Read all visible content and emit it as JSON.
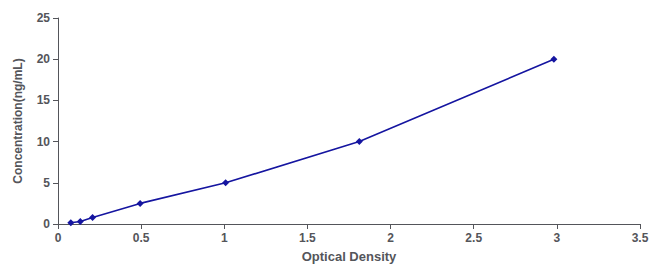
{
  "chart_data": {
    "type": "line",
    "x": [
      0.077,
      0.134,
      0.208,
      0.494,
      1.008,
      1.812,
      2.982
    ],
    "values": [
      0.156,
      0.312,
      0.781,
      2.5,
      5.0,
      10.0,
      20.0
    ],
    "xlabel": "Optical Density",
    "ylabel": "Concentration(ng/mL)",
    "xlim": [
      0,
      3.5
    ],
    "ylim": [
      0,
      25
    ],
    "xticks": [
      0,
      0.5,
      1,
      1.5,
      2,
      2.5,
      3,
      3.5
    ],
    "yticks": [
      0,
      5,
      10,
      15,
      20,
      25
    ],
    "grid": false,
    "color": "#1515a0",
    "marker": "diamond"
  }
}
